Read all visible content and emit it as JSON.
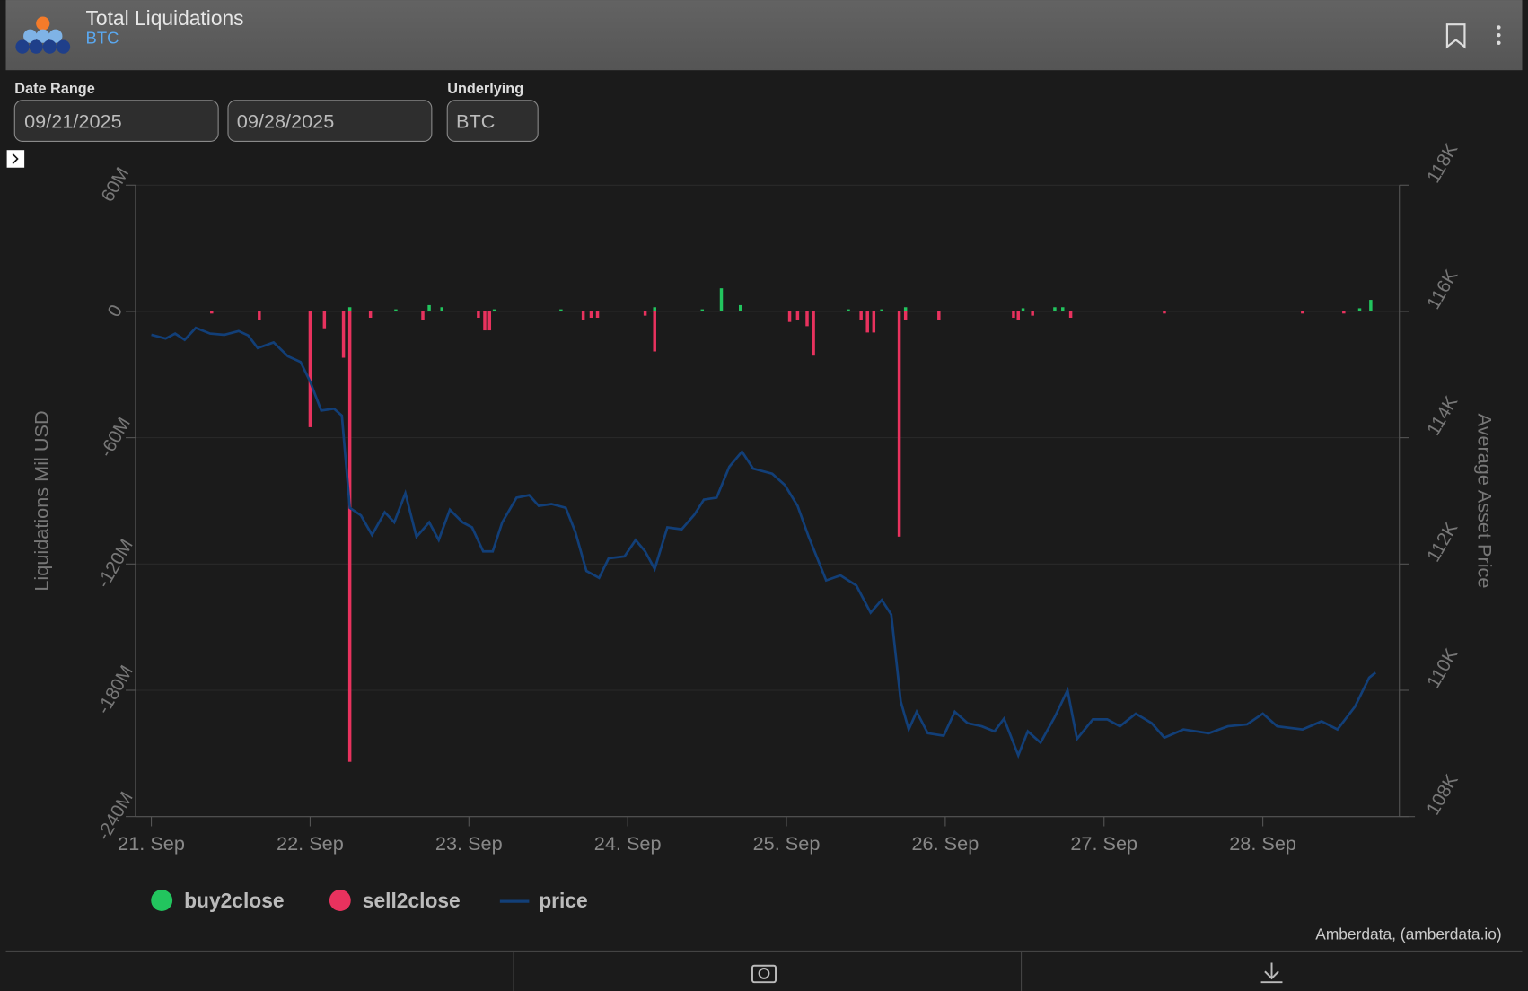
{
  "header": {
    "title": "Total Liquidations",
    "subtitle": "BTC"
  },
  "filters": {
    "date_range_label": "Date Range",
    "start": "09/21/2025",
    "end": "09/28/2025",
    "underlying_label": "Underlying",
    "underlying": "BTC"
  },
  "credit": "Amberdata, (amberdata.io)",
  "chart_data": {
    "type": "combo",
    "ylabel": "Liquidations Mil USD",
    "y2label": "Average Asset Price",
    "xlim": [
      20.9,
      28.86
    ],
    "xticks": [
      {
        "value": 21,
        "label": "21. Sep"
      },
      {
        "value": 22,
        "label": "22. Sep"
      },
      {
        "value": 23,
        "label": "23. Sep"
      },
      {
        "value": 24,
        "label": "24. Sep"
      },
      {
        "value": 25,
        "label": "25. Sep"
      },
      {
        "value": 26,
        "label": "26. Sep"
      },
      {
        "value": 27,
        "label": "27. Sep"
      },
      {
        "value": 28,
        "label": "28. Sep"
      }
    ],
    "ylim": [
      -240,
      60
    ],
    "yticks": [
      {
        "value": -240,
        "label": "-240M"
      },
      {
        "value": -180,
        "label": "-180M"
      },
      {
        "value": -120,
        "label": "-120M"
      },
      {
        "value": -60,
        "label": "-60M"
      },
      0,
      {
        "value": 60,
        "label": "60M"
      }
    ],
    "y2lim": [
      108000,
      118000
    ],
    "y2ticks": [
      {
        "value": 108000,
        "label": "108K"
      },
      {
        "value": 110000,
        "label": "110K"
      },
      {
        "value": 112000,
        "label": "112K"
      },
      {
        "value": 114000,
        "label": "114K"
      },
      {
        "value": 116000,
        "label": "116K"
      },
      {
        "value": 118000,
        "label": "118K"
      }
    ],
    "grid": true,
    "series": [
      {
        "name": "buy2close",
        "color": "#22c55e",
        "kind": "bar",
        "x": [
          22.25,
          22.54,
          22.75,
          22.83,
          23.16,
          23.58,
          24.17,
          24.47,
          24.59,
          24.71,
          25.39,
          25.6,
          25.75,
          26.49,
          26.69,
          26.74,
          28.61,
          28.68
        ],
        "values": [
          2,
          1,
          3,
          2,
          1,
          1,
          2,
          1,
          11,
          3,
          1,
          1,
          2,
          1.5,
          2,
          2,
          1.5,
          5.5
        ]
      },
      {
        "name": "sell2close",
        "color": "#e8325e",
        "kind": "bar",
        "x": [
          21.38,
          21.68,
          22.0,
          22.09,
          22.21,
          22.25,
          22.38,
          22.71,
          23.06,
          23.1,
          23.13,
          23.72,
          23.77,
          23.81,
          24.11,
          24.17,
          25.02,
          25.07,
          25.13,
          25.17,
          25.47,
          25.51,
          25.55,
          25.71,
          25.75,
          25.96,
          26.43,
          26.46,
          26.55,
          26.79,
          27.38,
          28.25,
          28.51
        ],
        "values": [
          -1,
          -4,
          -55,
          -8,
          -22,
          -214,
          -3,
          -4,
          -3,
          -9,
          -9,
          -4,
          -3,
          -3,
          -2,
          -19,
          -5,
          -4,
          -7,
          -21,
          -4,
          -10,
          -10,
          -107,
          -4,
          -4,
          -3,
          -4,
          -2,
          -3,
          -1,
          -1,
          -1
        ]
      },
      {
        "name": "price",
        "color": "#123f78",
        "kind": "line",
        "axis": "y2",
        "x": [
          21.0,
          21.09,
          21.15,
          21.21,
          21.28,
          21.37,
          21.46,
          21.55,
          21.61,
          21.67,
          21.77,
          21.86,
          21.94,
          22.0,
          22.07,
          22.15,
          22.2,
          22.25,
          22.32,
          22.39,
          22.47,
          22.53,
          22.6,
          22.67,
          22.75,
          22.81,
          22.88,
          22.96,
          23.02,
          23.09,
          23.15,
          23.21,
          23.3,
          23.38,
          23.44,
          23.52,
          23.61,
          23.67,
          23.74,
          23.82,
          23.88,
          23.98,
          24.05,
          24.11,
          24.17,
          24.25,
          24.34,
          24.42,
          24.48,
          24.56,
          24.64,
          24.72,
          24.79,
          24.91,
          24.99,
          25.07,
          25.14,
          25.25,
          25.34,
          25.44,
          25.53,
          25.6,
          25.66,
          25.72,
          25.77,
          25.82,
          25.89,
          25.99,
          26.06,
          26.14,
          26.23,
          26.31,
          26.37,
          26.46,
          26.52,
          26.6,
          26.69,
          26.77,
          26.83,
          26.93,
          27.02,
          27.1,
          27.2,
          27.3,
          27.38,
          27.5,
          27.66,
          27.78,
          27.9,
          28.0,
          28.09,
          28.25,
          28.37,
          28.47,
          28.58,
          28.67,
          28.71
        ],
        "values": [
          115630,
          115570,
          115650,
          115550,
          115740,
          115650,
          115630,
          115690,
          115620,
          115420,
          115510,
          115290,
          115200,
          114890,
          114430,
          114460,
          114350,
          112890,
          112770,
          112460,
          112820,
          112660,
          113120,
          112430,
          112660,
          112380,
          112860,
          112660,
          112580,
          112200,
          112200,
          112660,
          113050,
          113090,
          112920,
          112950,
          112890,
          112510,
          111890,
          111780,
          112090,
          112120,
          112380,
          112200,
          111920,
          112580,
          112550,
          112780,
          113020,
          113050,
          113540,
          113780,
          113510,
          113430,
          113250,
          112920,
          112430,
          111740,
          111820,
          111660,
          111230,
          111430,
          111200,
          109820,
          109380,
          109660,
          109320,
          109280,
          109660,
          109480,
          109430,
          109350,
          109550,
          108970,
          109350,
          109170,
          109580,
          110000,
          109230,
          109540,
          109540,
          109430,
          109630,
          109480,
          109250,
          109380,
          109320,
          109430,
          109460,
          109630,
          109430,
          109380,
          109510,
          109380,
          109740,
          110200,
          110280
        ]
      }
    ]
  }
}
